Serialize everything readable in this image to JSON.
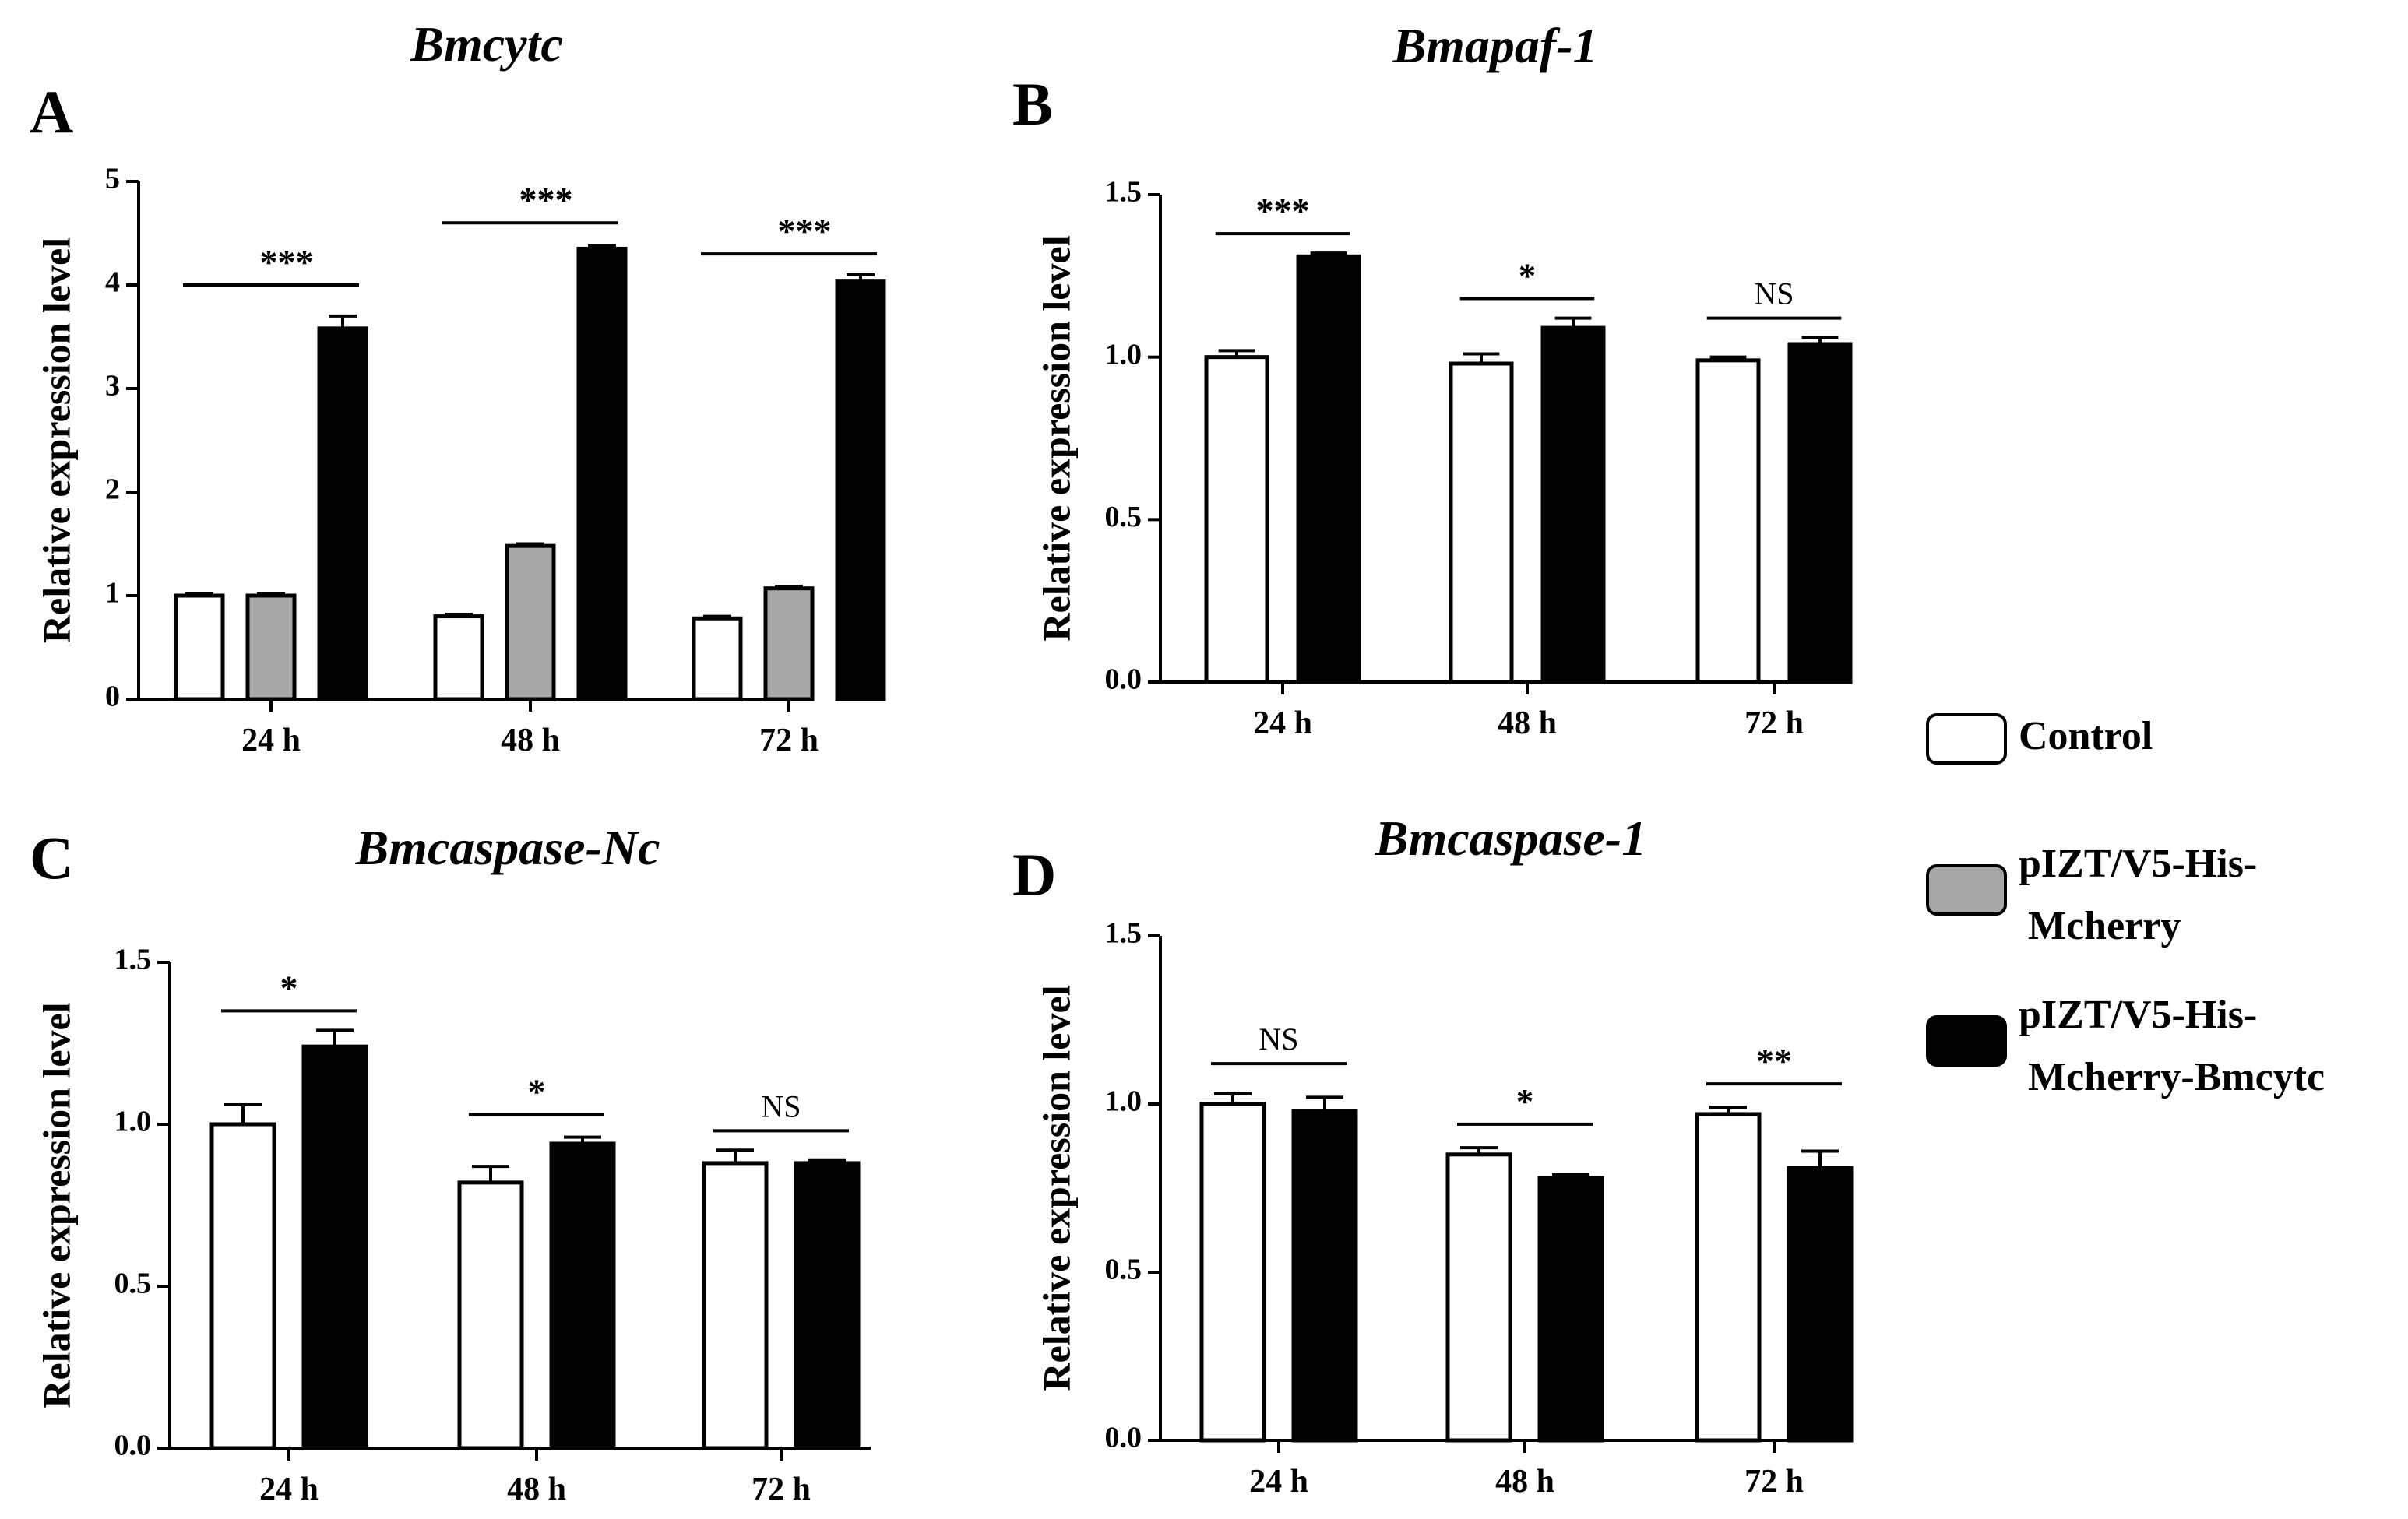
{
  "colors": {
    "control": "#ffffff",
    "mcherry": "#a8a8a8",
    "bmcytc": "#000000",
    "axis": "#000000"
  },
  "legend": {
    "items": [
      {
        "lines": [
          "Control"
        ],
        "color": "#ffffff"
      },
      {
        "lines": [
          "pIZT/V5-His-",
          "Mcherry"
        ],
        "color": "#a8a8a8"
      },
      {
        "lines": [
          "pIZT/V5-His-",
          "Mcherry-Bmcytc"
        ],
        "color": "#000000"
      }
    ]
  },
  "chart_data": [
    {
      "panel": "A",
      "type": "bar",
      "title": "Bmcytc",
      "ylabel": "Relative expression level",
      "xlabel": "",
      "ylim": [
        0,
        5
      ],
      "yticks": [
        "0",
        "1",
        "2",
        "3",
        "4",
        "5"
      ],
      "categories": [
        "24 h",
        "48 h",
        "72 h"
      ],
      "series": [
        {
          "name": "Control",
          "values": [
            1.0,
            0.8,
            0.78
          ],
          "errors": [
            0.02,
            0.02,
            0.02
          ]
        },
        {
          "name": "pIZT/V5-His-Mcherry",
          "values": [
            1.0,
            1.48,
            1.07
          ],
          "errors": [
            0.02,
            0.02,
            0.02
          ]
        },
        {
          "name": "pIZT/V5-His-Mcherry-Bmcytc",
          "values": [
            3.58,
            4.35,
            4.04
          ],
          "errors": [
            0.12,
            0.03,
            0.06
          ]
        }
      ],
      "significance": [
        {
          "category": "24 h",
          "label": "***",
          "y": 4.0
        },
        {
          "category": "48 h",
          "label": "***",
          "y": 4.6
        },
        {
          "category": "72 h",
          "label": "***",
          "y": 4.3
        }
      ]
    },
    {
      "panel": "B",
      "type": "bar",
      "title": "Bmapaf-1",
      "ylabel": "Relative expression level",
      "xlabel": "",
      "ylim": [
        0,
        1.5
      ],
      "yticks": [
        "0.0",
        "0.5",
        "1.0",
        "1.5"
      ],
      "categories": [
        "24 h",
        "48 h",
        "72 h"
      ],
      "series": [
        {
          "name": "Control",
          "values": [
            1.0,
            0.98,
            0.99
          ],
          "errors": [
            0.02,
            0.03,
            0.01
          ]
        },
        {
          "name": "pIZT/V5-His-Mcherry-Bmcytc",
          "values": [
            1.31,
            1.09,
            1.04
          ],
          "errors": [
            0.01,
            0.03,
            0.02
          ]
        }
      ],
      "significance": [
        {
          "category": "24 h",
          "label": "***",
          "y": 1.38
        },
        {
          "category": "48 h",
          "label": "*",
          "y": 1.18
        },
        {
          "category": "72 h",
          "label": "NS",
          "y": 1.12
        }
      ]
    },
    {
      "panel": "C",
      "type": "bar",
      "title": "Bmcaspase-Nc",
      "ylabel": "Relative expression level",
      "xlabel": "",
      "ylim": [
        0,
        1.5
      ],
      "yticks": [
        "0.0",
        "0.5",
        "1.0",
        "1.5"
      ],
      "categories": [
        "24 h",
        "48 h",
        "72 h"
      ],
      "series": [
        {
          "name": "Control",
          "values": [
            1.0,
            0.82,
            0.88
          ],
          "errors": [
            0.06,
            0.05,
            0.04
          ]
        },
        {
          "name": "pIZT/V5-His-Mcherry-Bmcytc",
          "values": [
            1.24,
            0.94,
            0.88
          ],
          "errors": [
            0.05,
            0.02,
            0.01
          ]
        }
      ],
      "significance": [
        {
          "category": "24 h",
          "label": "*",
          "y": 1.35
        },
        {
          "category": "48 h",
          "label": "*",
          "y": 1.03
        },
        {
          "category": "72 h",
          "label": "NS",
          "y": 0.98
        }
      ]
    },
    {
      "panel": "D",
      "type": "bar",
      "title": "Bmcaspase-1",
      "ylabel": "Relative expression level",
      "xlabel": "",
      "ylim": [
        0,
        1.5
      ],
      "yticks": [
        "0.0",
        "0.5",
        "1.0",
        "1.5"
      ],
      "categories": [
        "24 h",
        "48 h",
        "72 h"
      ],
      "series": [
        {
          "name": "Control",
          "values": [
            1.0,
            0.85,
            0.97
          ],
          "errors": [
            0.03,
            0.02,
            0.02
          ]
        },
        {
          "name": "pIZT/V5-His-Mcherry-Bmcytc",
          "values": [
            0.98,
            0.78,
            0.81
          ],
          "errors": [
            0.04,
            0.01,
            0.05
          ]
        }
      ],
      "significance": [
        {
          "category": "24 h",
          "label": "NS",
          "y": 1.12
        },
        {
          "category": "48 h",
          "label": "*",
          "y": 0.94
        },
        {
          "category": "72 h",
          "label": "**",
          "y": 1.06
        }
      ]
    }
  ]
}
